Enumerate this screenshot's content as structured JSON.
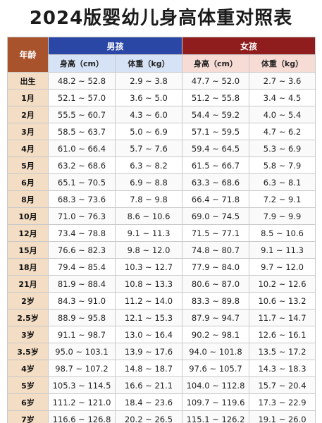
{
  "title": "2024版婴幼儿身高体重对照表",
  "headers": {
    "age": "年龄",
    "boy": "男孩",
    "girl": "女孩",
    "height": "身高（cm）",
    "weight": "体重（kg）"
  },
  "rows": [
    {
      "age": "出生",
      "boy_h": "48.2 ~ 52.8",
      "boy_w": "2.9 ~ 3.8",
      "girl_h": "47.7 ~ 52.0",
      "girl_w": "2.7 ~ 3.6"
    },
    {
      "age": "1月",
      "boy_h": "52.1 ~ 57.0",
      "boy_w": "3.6 ~ 5.0",
      "girl_h": "51.2 ~ 55.8",
      "girl_w": "3.4 ~ 4.5"
    },
    {
      "age": "2月",
      "boy_h": "55.5 ~ 60.7",
      "boy_w": "4.3 ~ 6.0",
      "girl_h": "54.4 ~ 59.2",
      "girl_w": "4.0 ~ 5.4"
    },
    {
      "age": "3月",
      "boy_h": "58.5 ~ 63.7",
      "boy_w": "5.0 ~ 6.9",
      "girl_h": "57.1 ~ 59.5",
      "girl_w": "4.7 ~ 6.2"
    },
    {
      "age": "4月",
      "boy_h": "61.0 ~ 66.4",
      "boy_w": "5.7 ~ 7.6",
      "girl_h": "59.4 ~ 64.5",
      "girl_w": "5.3 ~ 6.9"
    },
    {
      "age": "5月",
      "boy_h": "63.2 ~ 68.6",
      "boy_w": "6.3 ~ 8.2",
      "girl_h": "61.5 ~ 66.7",
      "girl_w": "5.8 ~ 7.9"
    },
    {
      "age": "6月",
      "boy_h": "65.1 ~ 70.5",
      "boy_w": "6.9 ~ 8.8",
      "girl_h": "63.3 ~ 68.6",
      "girl_w": "6.3 ~ 8.1"
    },
    {
      "age": "8月",
      "boy_h": "68.3 ~ 73.6",
      "boy_w": "7.8 ~ 9.8",
      "girl_h": "66.4 ~ 71.8",
      "girl_w": "7.2 ~ 9.1"
    },
    {
      "age": "10月",
      "boy_h": "71.0 ~ 76.3",
      "boy_w": "8.6 ~ 10.6",
      "girl_h": "69.0 ~ 74.5",
      "girl_w": "7.9 ~ 9.9"
    },
    {
      "age": "12月",
      "boy_h": "73.4 ~ 78.8",
      "boy_w": "9.1 ~ 11.3",
      "girl_h": "71.5 ~ 77.1",
      "girl_w": "8.5 ~ 10.6"
    },
    {
      "age": "15月",
      "boy_h": "76.6 ~ 82.3",
      "boy_w": "9.8 ~ 12.0",
      "girl_h": "74.8 ~ 80.7",
      "girl_w": "9.1 ~ 11.3"
    },
    {
      "age": "18月",
      "boy_h": "79.4 ~ 85.4",
      "boy_w": "10.3 ~ 12.7",
      "girl_h": "77.9 ~ 84.0",
      "girl_w": "9.7 ~ 12.0"
    },
    {
      "age": "21月",
      "boy_h": "81.9 ~ 88.4",
      "boy_w": "10.8 ~ 13.3",
      "girl_h": "80.6 ~ 87.0",
      "girl_w": "10.2 ~ 12.6"
    },
    {
      "age": "2岁",
      "boy_h": "84.3 ~ 91.0",
      "boy_w": "11.2 ~ 14.0",
      "girl_h": "83.3 ~ 89.8",
      "girl_w": "10.6 ~ 13.2"
    },
    {
      "age": "2.5岁",
      "boy_h": "88.9 ~ 95.8",
      "boy_w": "12.1 ~ 15.3",
      "girl_h": "87.9 ~ 94.7",
      "girl_w": "11.7 ~ 14.7"
    },
    {
      "age": "3岁",
      "boy_h": "91.1 ~ 98.7",
      "boy_w": "13.0 ~ 16.4",
      "girl_h": "90.2 ~ 98.1",
      "girl_w": "12.6 ~ 16.1"
    },
    {
      "age": "3.5岁",
      "boy_h": "95.0 ~ 103.1",
      "boy_w": "13.9 ~ 17.6",
      "girl_h": "94.0 ~ 101.8",
      "girl_w": "13.5 ~ 17.2"
    },
    {
      "age": "4岁",
      "boy_h": "98.7 ~ 107.2",
      "boy_w": "14.8 ~ 18.7",
      "girl_h": "97.6 ~ 105.7",
      "girl_w": "14.3 ~ 18.3"
    },
    {
      "age": "5岁",
      "boy_h": "105.3 ~ 114.5",
      "boy_w": "16.6 ~ 21.1",
      "girl_h": "104.0 ~ 112.8",
      "girl_w": "15.7 ~ 20.4"
    },
    {
      "age": "6岁",
      "boy_h": "111.2 ~ 121.0",
      "boy_w": "18.4 ~ 23.6",
      "girl_h": "109.7 ~ 119.6",
      "girl_w": "17.3 ~ 22.9"
    },
    {
      "age": "7岁",
      "boy_h": "116.6 ~ 126.8",
      "boy_w": "20.2 ~ 26.5",
      "girl_h": "115.1 ~ 126.2",
      "girl_w": "19.1 ~ 26.0"
    }
  ]
}
